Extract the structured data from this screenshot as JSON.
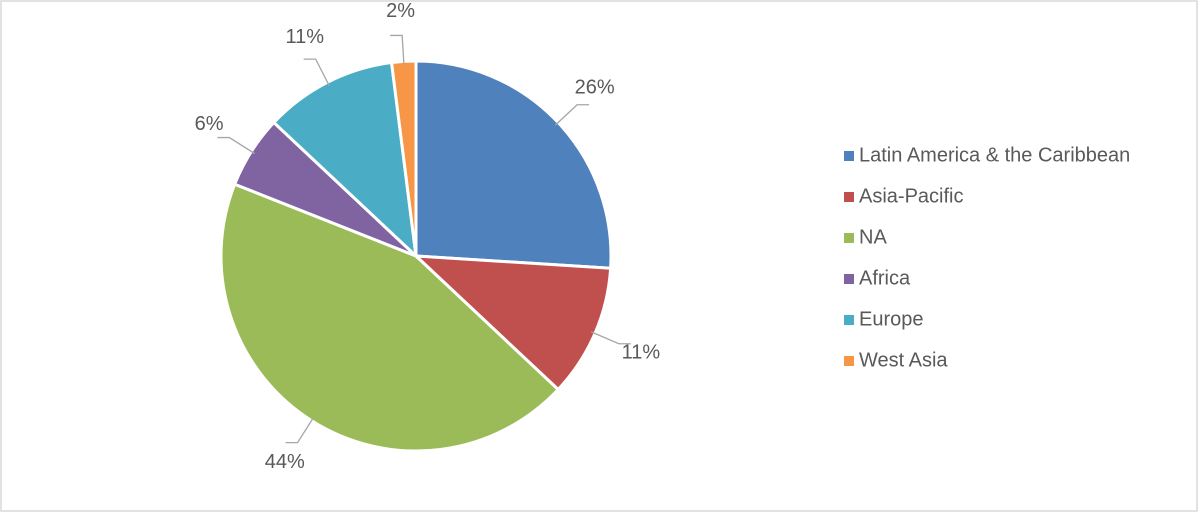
{
  "chart_data": {
    "type": "pie",
    "categories": [
      "Latin America & the Caribbean",
      "Asia-Pacific",
      "NA",
      "Africa",
      "Europe",
      "West Asia"
    ],
    "values": [
      26,
      11,
      44,
      6,
      11,
      2
    ],
    "value_labels": [
      "26%",
      "11%",
      "44%",
      "6%",
      "11%",
      "2%"
    ],
    "colors": [
      "#4f81bd",
      "#c0504d",
      "#9bbb59",
      "#8064a2",
      "#4bacc6",
      "#f79646"
    ],
    "legend": "right"
  }
}
